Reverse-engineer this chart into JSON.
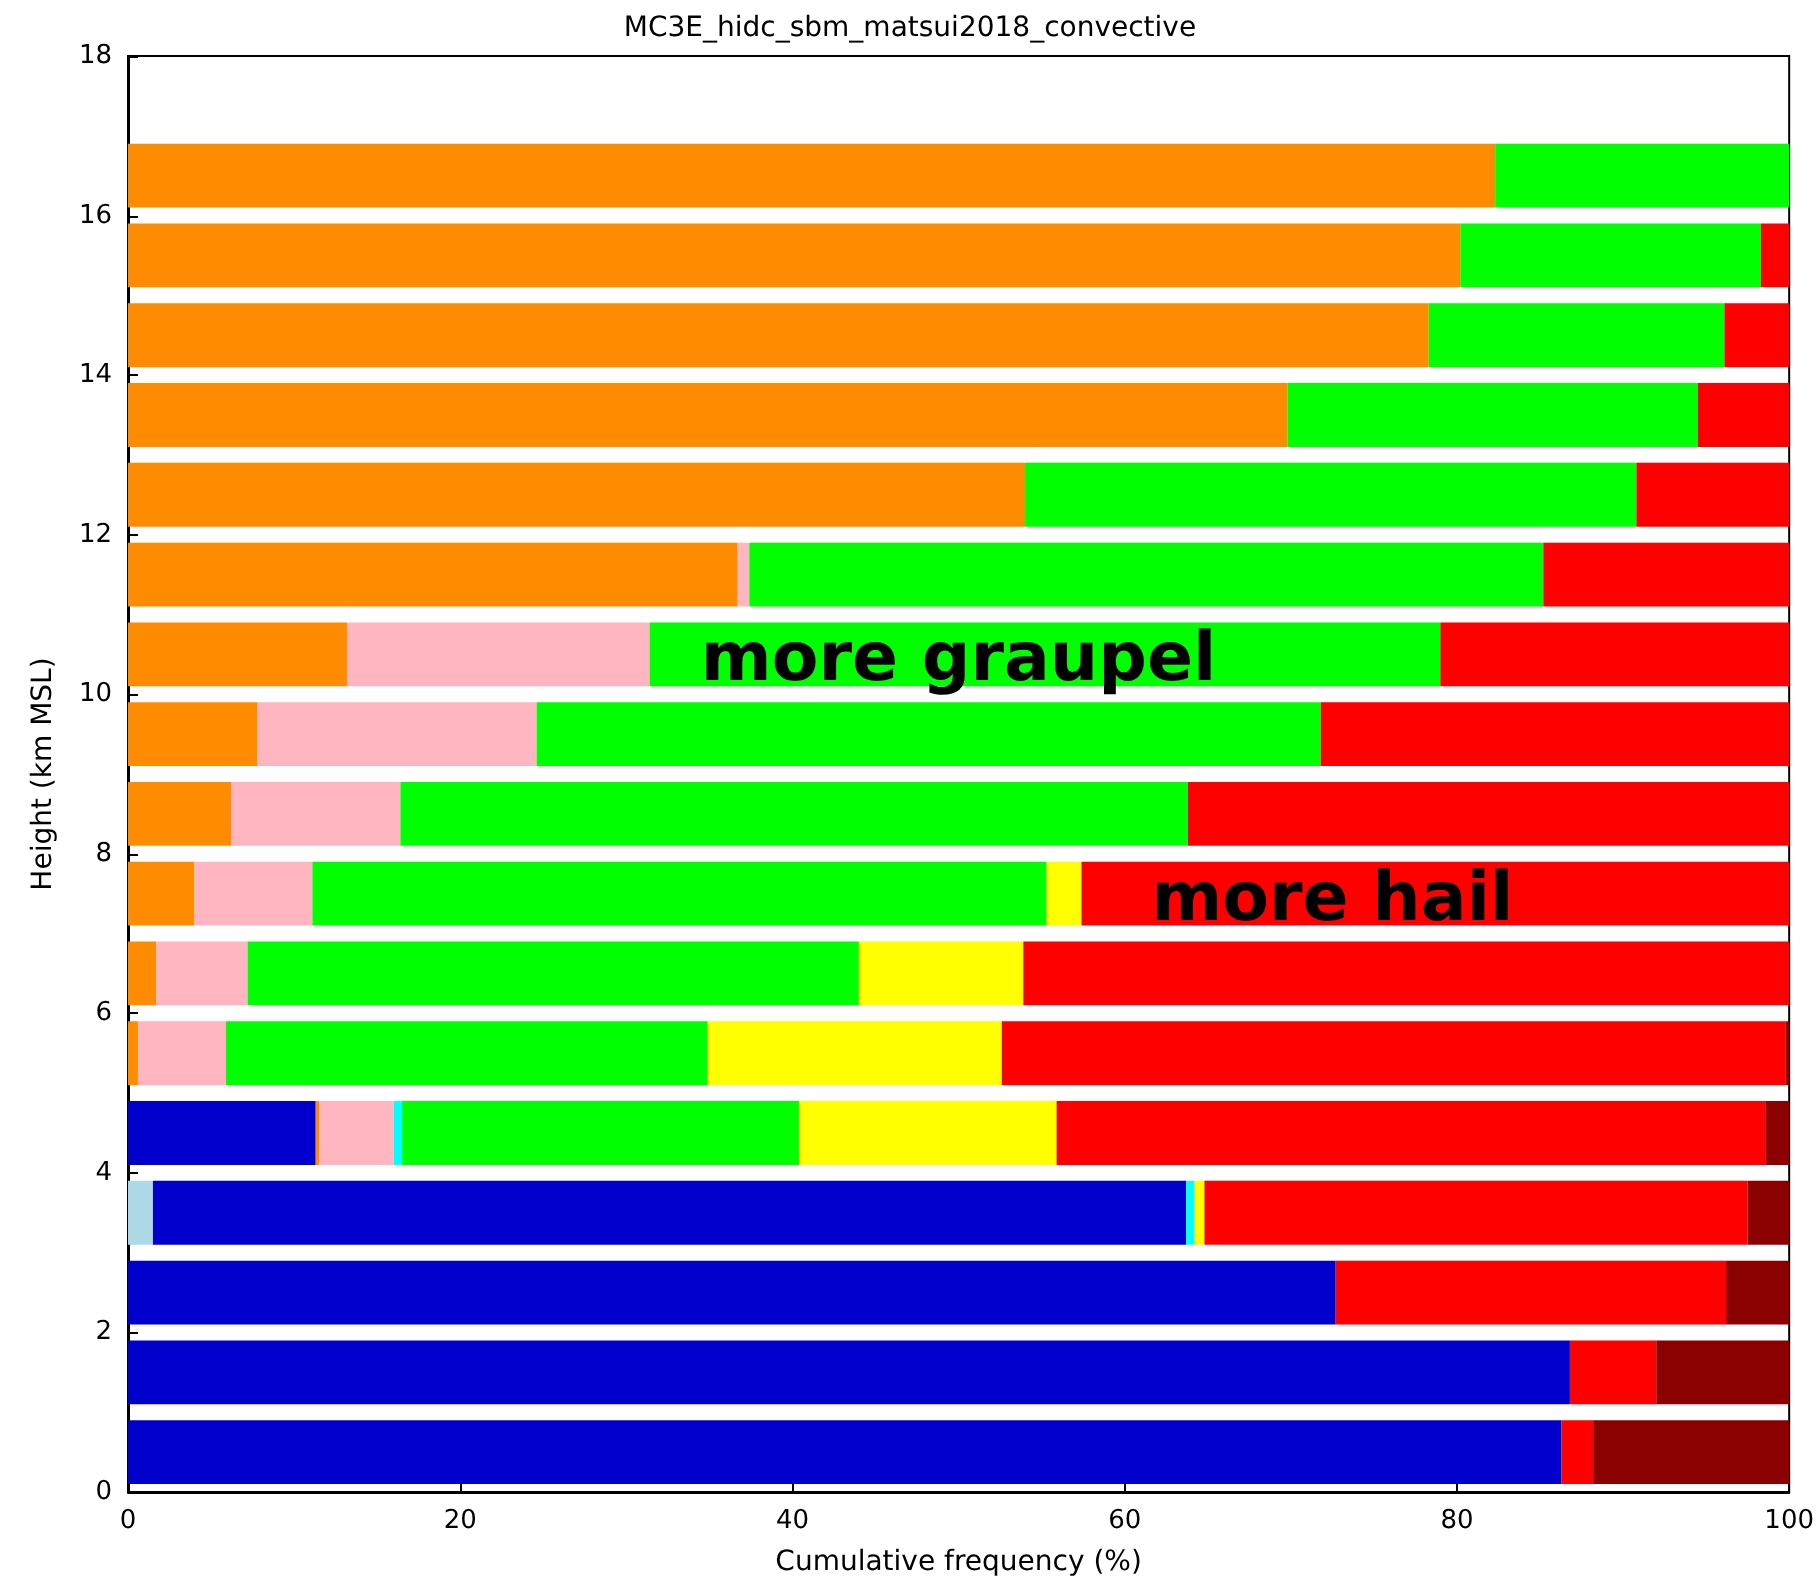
{
  "chart_data": {
    "type": "bar",
    "orientation": "horizontal",
    "stacked": true,
    "title": "MC3E_hidc_sbm_matsui2018_convective",
    "xlabel": "Cumulative frequency (%)",
    "ylabel": "Height (km MSL)",
    "x": [
      0.5,
      1.5,
      2.5,
      3.5,
      4.5,
      5.5,
      6.5,
      7.5,
      8.5,
      9.5,
      10.5,
      11.5,
      12.5,
      13.5,
      14.5,
      15.5,
      16.5
    ],
    "series": [
      {
        "color": "#add8e6",
        "values": [
          null,
          null,
          null,
          1.5,
          null,
          null,
          null,
          null,
          null,
          null,
          null,
          null,
          null,
          null,
          null,
          null,
          null
        ]
      },
      {
        "color": "#0000cd",
        "values": [
          86.3,
          86.8,
          72.7,
          62.2,
          11.3,
          null,
          null,
          null,
          null,
          null,
          null,
          null,
          null,
          null,
          null,
          null,
          null
        ]
      },
      {
        "color": "#ff8c00",
        "values": [
          null,
          null,
          null,
          null,
          0.2,
          0.6,
          1.7,
          4.0,
          6.2,
          7.8,
          13.2,
          36.7,
          54.0,
          69.8,
          78.3,
          80.2,
          82.3
        ]
      },
      {
        "color": "#ffb6c1",
        "values": [
          null,
          null,
          null,
          null,
          4.5,
          5.3,
          5.5,
          7.1,
          10.2,
          16.8,
          18.2,
          0.7,
          null,
          null,
          null,
          null,
          null
        ]
      },
      {
        "color": "#00ffff",
        "values": [
          null,
          null,
          null,
          0.5,
          0.5,
          null,
          null,
          null,
          null,
          null,
          null,
          null,
          null,
          null,
          null,
          null,
          null
        ]
      },
      {
        "color": "#00ff00",
        "values": [
          null,
          null,
          null,
          null,
          23.9,
          29.0,
          36.8,
          44.2,
          47.4,
          47.2,
          47.6,
          47.8,
          36.8,
          24.7,
          17.8,
          18.1,
          17.7
        ]
      },
      {
        "color": "#ffff00",
        "values": [
          null,
          null,
          null,
          0.6,
          15.5,
          17.7,
          9.9,
          2.1,
          null,
          null,
          null,
          null,
          null,
          null,
          null,
          null,
          null
        ]
      },
      {
        "color": "#ff0000",
        "values": [
          1.9,
          5.2,
          23.5,
          32.7,
          42.7,
          47.2,
          46.1,
          42.6,
          36.2,
          28.2,
          21.0,
          14.8,
          9.2,
          5.5,
          3.9,
          1.7,
          null
        ]
      },
      {
        "color": "#8b0000",
        "values": [
          11.8,
          8.0,
          3.8,
          2.5,
          1.4,
          0.2,
          null,
          null,
          null,
          null,
          null,
          null,
          null,
          null,
          null,
          null,
          null
        ]
      }
    ],
    "xlim": [
      0,
      100
    ],
    "xticks": [
      0,
      20,
      40,
      60,
      80,
      100
    ],
    "ylim": [
      0,
      18
    ],
    "yticks": [
      0,
      2,
      4,
      6,
      8,
      10,
      12,
      14,
      16,
      18
    ],
    "annotations": [
      "more graupel",
      "more hail"
    ]
  }
}
